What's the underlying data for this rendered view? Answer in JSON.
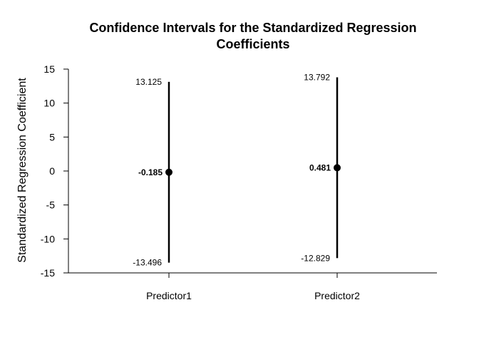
{
  "chart_data": {
    "type": "scatter",
    "title_lines": [
      "Confidence Intervals for the Standardized Regression",
      "Coefficients"
    ],
    "ylabel": "Standardized Regression Coefficient",
    "xlabel": "",
    "ylim": [
      -15,
      15
    ],
    "yticks": [
      15,
      10,
      5,
      0,
      -5,
      -10,
      -15
    ],
    "ytick_labels": [
      "15",
      "10",
      "5",
      "0",
      "-5",
      "-10",
      "-15"
    ],
    "categories": [
      "Predictor1",
      "Predictor2"
    ],
    "estimates": [
      -0.185,
      0.481
    ],
    "lower": [
      -13.496,
      -12.829
    ],
    "upper": [
      13.125,
      13.792
    ],
    "estimate_labels": [
      "-0.185",
      "0.481"
    ],
    "lower_labels": [
      "-13.496",
      "-12.829"
    ],
    "upper_labels": [
      "13.125",
      "13.792"
    ],
    "grid": false,
    "colors": {
      "marks": "#000000",
      "background": "#ffffff"
    }
  }
}
